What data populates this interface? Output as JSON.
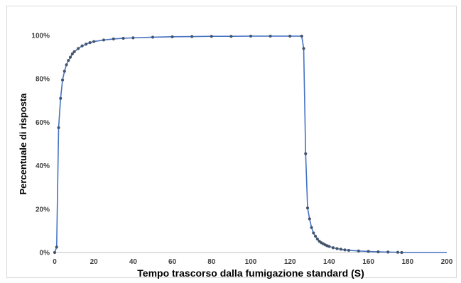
{
  "chart_data": {
    "type": "line",
    "title": "",
    "xlabel": "Tempo trascorso dalla fumigazione standard (S)",
    "ylabel": "Percentuale di risposta",
    "xlim": [
      0,
      200
    ],
    "ylim": [
      0,
      1
    ],
    "x_ticks": [
      "0",
      "20",
      "40",
      "60",
      "80",
      "100",
      "120",
      "140",
      "160",
      "180",
      "200"
    ],
    "y_ticks": [
      "0%",
      "20%",
      "40%",
      "60%",
      "80%",
      "100%"
    ],
    "grid": false,
    "legend": "none",
    "colors": {
      "line": "#4472c4",
      "marker": "#44546a"
    },
    "series": [
      {
        "x": [
          0,
          1,
          2,
          3,
          4,
          5,
          6,
          7,
          8,
          9,
          10,
          12,
          14,
          16,
          18,
          20,
          25,
          30,
          35,
          40,
          50,
          60,
          70,
          80,
          90,
          100,
          110,
          120,
          126,
          127,
          128,
          129,
          130,
          131,
          132,
          133,
          134,
          135,
          136,
          137,
          138,
          139,
          140,
          142,
          144,
          146,
          148,
          150,
          155,
          160,
          165,
          170,
          175,
          177,
          200
        ],
        "y": [
          0.0,
          0.025,
          0.575,
          0.71,
          0.795,
          0.835,
          0.865,
          0.885,
          0.9,
          0.915,
          0.925,
          0.94,
          0.952,
          0.96,
          0.967,
          0.972,
          0.979,
          0.984,
          0.987,
          0.989,
          0.992,
          0.994,
          0.995,
          0.996,
          0.996,
          0.997,
          0.997,
          0.997,
          0.997,
          0.94,
          0.455,
          0.205,
          0.155,
          0.115,
          0.09,
          0.075,
          0.062,
          0.052,
          0.045,
          0.04,
          0.035,
          0.031,
          0.028,
          0.022,
          0.018,
          0.015,
          0.012,
          0.01,
          0.007,
          0.005,
          0.003,
          0.002,
          0.001,
          0.0,
          0.0
        ]
      }
    ]
  }
}
